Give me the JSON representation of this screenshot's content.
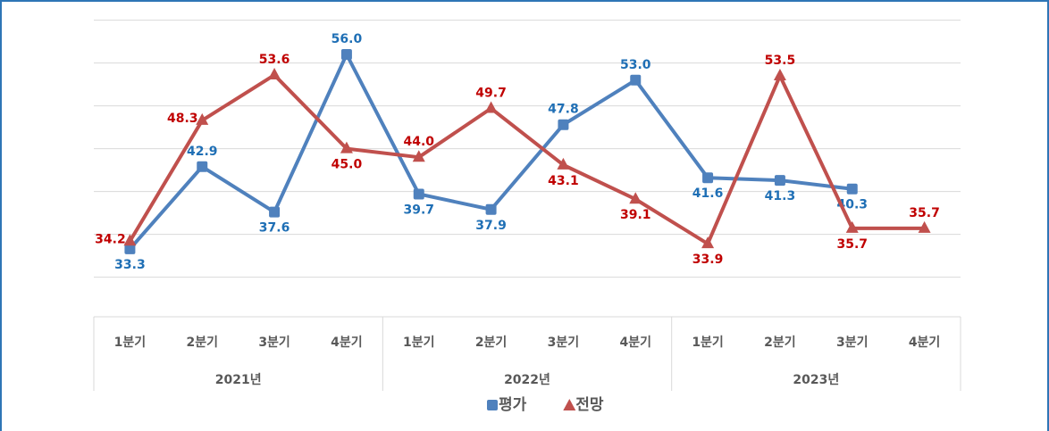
{
  "chart_data": {
    "type": "line",
    "category_groups": [
      {
        "name": "2021년",
        "categories": [
          "1분기",
          "2분기",
          "3분기",
          "4분기"
        ]
      },
      {
        "name": "2022년",
        "categories": [
          "1분기",
          "2분기",
          "3분기",
          "4분기"
        ]
      },
      {
        "name": "2023년",
        "categories": [
          "1분기",
          "2분기",
          "3분기",
          "4분기"
        ]
      }
    ],
    "series": [
      {
        "name": "평가",
        "color": "#4f81bd",
        "label_color": "#1f6fb5",
        "marker": "square",
        "values": [
          33.3,
          42.9,
          37.6,
          56.0,
          39.7,
          37.9,
          47.8,
          53.0,
          41.6,
          41.3,
          40.3,
          null
        ],
        "value_labels": [
          "33.3",
          "42.9",
          "37.6",
          "56.0",
          "39.7",
          "37.9",
          "47.8",
          "53.0",
          "41.6",
          "41.3",
          "40.3",
          null
        ]
      },
      {
        "name": "전망",
        "color": "#c0504d",
        "label_color": "#c00000",
        "marker": "triangle",
        "values": [
          34.2,
          48.3,
          53.6,
          45.0,
          44.0,
          49.7,
          43.1,
          39.1,
          33.9,
          53.5,
          35.7,
          35.7
        ],
        "value_labels": [
          "34.2",
          "48.3",
          "53.6",
          "45.0",
          "44.0",
          "49.7",
          "43.1",
          "39.1",
          "33.9",
          "53.5",
          "35.7",
          "35.7"
        ]
      }
    ],
    "ylim": [
      30,
      60
    ],
    "yticks": [
      30,
      35,
      40,
      45,
      50,
      55,
      60
    ],
    "grid": true,
    "legend": "bottom"
  }
}
